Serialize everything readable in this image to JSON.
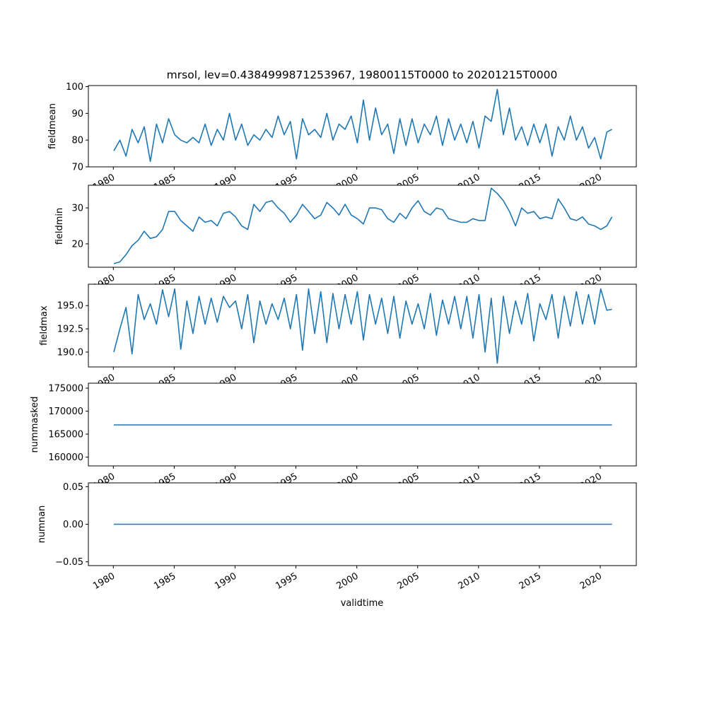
{
  "chart_data": {
    "type": "line",
    "title": "mrsol, lev=0.4384999871253967, 19800115T0000 to 20201215T0000",
    "xlabel": "validtime",
    "xlim": [
      1977.95,
      2022.96
    ],
    "xticks": [
      1980,
      1985,
      1990,
      1995,
      2000,
      2005,
      2010,
      2015,
      2020
    ],
    "xtick_labels": [
      "1980",
      "1985",
      "1990",
      "1995",
      "2000",
      "2005",
      "2010",
      "2015",
      "2020"
    ],
    "line_color": "#1f77b4",
    "grid": false,
    "panels": [
      {
        "name": "fieldmean",
        "ylabel": "fieldmean",
        "ylim": [
          70,
          100.4
        ],
        "yticks": [
          70,
          80,
          90,
          100
        ],
        "ytick_labels": [
          "70",
          "80",
          "90",
          "100"
        ],
        "x_start": 1980.04,
        "x_step": 0.5,
        "x_end": 2020.96,
        "values": [
          76,
          80,
          74,
          84,
          79,
          85,
          72,
          86,
          79,
          88,
          82,
          80,
          79,
          81,
          79,
          86,
          78,
          84,
          80,
          90,
          80,
          86,
          78,
          82,
          80,
          84,
          81,
          89,
          82,
          87,
          73,
          88,
          82,
          84,
          81,
          90,
          80,
          86,
          84,
          89,
          79,
          95,
          80,
          92,
          82,
          86,
          75,
          88,
          78,
          88,
          79,
          86,
          82,
          89,
          78,
          88,
          80,
          86,
          79,
          87,
          77,
          89,
          87,
          99,
          82,
          92,
          80,
          85,
          78,
          86,
          79,
          86,
          74,
          85,
          80,
          89,
          80,
          85,
          77,
          81,
          73,
          83,
          84
        ]
      },
      {
        "name": "fieldmin",
        "ylabel": "fieldmin",
        "ylim": [
          13.5,
          36.3
        ],
        "yticks": [
          20,
          30
        ],
        "ytick_labels": [
          "20",
          "30"
        ],
        "x_start": 1980.04,
        "x_step": 0.5,
        "x_end": 2020.96,
        "values": [
          14.5,
          15,
          17,
          19.5,
          21,
          23.5,
          21.5,
          22,
          24,
          29,
          29,
          26.5,
          25,
          23.5,
          27.5,
          26,
          26.5,
          25,
          28.5,
          29,
          27.5,
          25,
          24,
          31,
          29,
          31.5,
          32,
          30,
          28.5,
          26,
          28,
          31,
          29,
          27,
          28,
          31.5,
          30,
          28,
          31,
          28,
          27,
          25.5,
          30,
          30,
          29.5,
          27,
          26,
          28.5,
          27,
          30,
          32,
          29,
          28,
          30,
          29.5,
          27,
          26.5,
          26,
          26,
          27,
          26.5,
          26.5,
          35.5,
          34,
          32,
          29,
          25,
          30,
          28.5,
          29,
          27,
          27.5,
          27,
          32.5,
          30,
          27,
          26.5,
          27.5,
          25.5,
          25,
          24,
          25,
          27.5
        ]
      },
      {
        "name": "fieldmax",
        "ylabel": "fieldmax",
        "ylim": [
          188.4,
          197.3
        ],
        "yticks": [
          190.0,
          192.5,
          195.0
        ],
        "ytick_labels": [
          "190.0",
          "192.5",
          "195.0"
        ],
        "x_start": 1980.04,
        "x_step": 0.5,
        "x_end": 2020.96,
        "values": [
          190,
          192.5,
          194.8,
          189.8,
          196.2,
          193.5,
          195.2,
          193,
          196.7,
          193.8,
          196.8,
          190.3,
          195.5,
          192,
          196,
          193,
          195.8,
          193.2,
          196,
          194.8,
          195.5,
          192.5,
          196.2,
          191,
          195.5,
          193,
          195.2,
          193.5,
          195.8,
          192.5,
          196.2,
          190.2,
          196.8,
          192,
          196.5,
          191,
          196.3,
          192.5,
          196.2,
          193,
          196.5,
          191.3,
          196.2,
          193,
          195.8,
          192,
          196,
          191.5,
          195.5,
          193,
          195.2,
          192.5,
          196.3,
          191.8,
          195.6,
          193,
          196,
          192.5,
          196,
          191.5,
          196.2,
          190,
          195.8,
          188.8,
          196,
          192,
          195.5,
          193,
          196.3,
          191.2,
          195.2,
          193.5,
          196.2,
          191.5,
          196,
          192.8,
          196.5,
          193,
          196.2,
          193,
          196.8,
          194.5,
          194.6
        ]
      },
      {
        "name": "nummasked",
        "ylabel": "nummasked",
        "ylim": [
          158080,
          176080
        ],
        "yticks": [
          160000,
          165000,
          170000,
          175000
        ],
        "ytick_labels": [
          "160000",
          "165000",
          "170000",
          "175000"
        ],
        "x_start": 1980.04,
        "x_step": 40.92,
        "x_end": 2020.96,
        "values": [
          167000,
          167000
        ]
      },
      {
        "name": "numnan",
        "ylabel": "numnan",
        "ylim": [
          -0.055,
          0.055
        ],
        "yticks": [
          -0.05,
          0.0,
          0.05
        ],
        "ytick_labels": [
          "−0.05",
          "0.00",
          "0.05"
        ],
        "x_start": 1980.04,
        "x_step": 40.92,
        "x_end": 2020.96,
        "values": [
          0,
          0
        ]
      }
    ]
  }
}
